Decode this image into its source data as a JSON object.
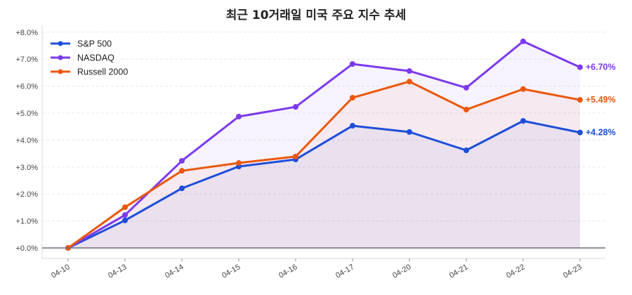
{
  "chart_data": {
    "type": "line",
    "title": "최근 10거래일 미국 주요 지수 추세",
    "xlabel": "",
    "ylabel": "",
    "x": [
      "04-10",
      "04-13",
      "04-14",
      "04-15",
      "04-16",
      "04-17",
      "04-20",
      "04-21",
      "04-22",
      "04-23"
    ],
    "ylim": [
      -0.4,
      8.3
    ],
    "yticks": [
      0,
      1,
      2,
      3,
      4,
      5,
      6,
      7,
      8
    ],
    "ytick_labels": [
      "+0.0%",
      "+1.0%",
      "+2.0%",
      "+3.0%",
      "+4.0%",
      "+5.0%",
      "+6.0%",
      "+7.0%",
      "+8.0%"
    ],
    "grid": true,
    "legend_position": "top-left",
    "series": [
      {
        "name": "S&P 500",
        "color": "#1d4ed8",
        "values": [
          0,
          1.02,
          2.21,
          3.02,
          3.28,
          4.53,
          4.3,
          3.62,
          4.71,
          4.28
        ],
        "end_label": "+4.28%"
      },
      {
        "name": "NASDAQ",
        "color": "#7c3aed",
        "values": [
          0,
          1.22,
          3.23,
          4.87,
          5.23,
          6.82,
          6.56,
          5.94,
          7.66,
          6.7
        ],
        "end_label": "+6.70%"
      },
      {
        "name": "Russell 2000",
        "color": "#ea580c",
        "values": [
          0,
          1.51,
          2.86,
          3.15,
          3.39,
          5.57,
          6.17,
          5.13,
          5.89,
          5.49
        ],
        "end_label": "+5.49%"
      }
    ]
  }
}
